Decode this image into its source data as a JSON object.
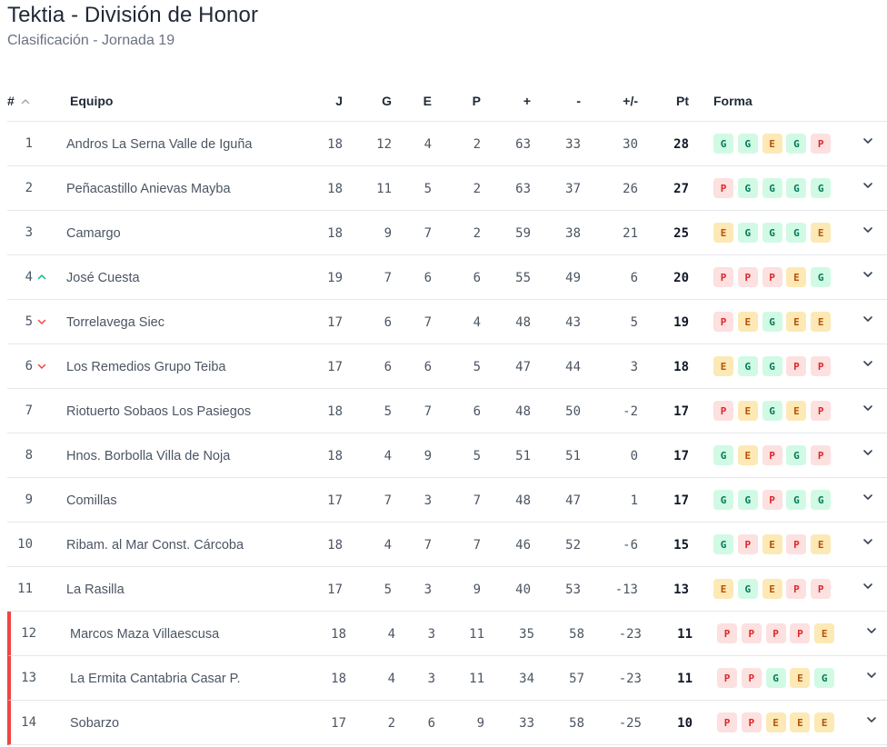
{
  "title": "Tektia - División de Honor",
  "subtitle": "Clasificación - Jornada 19",
  "headers": {
    "pos": "#",
    "team": "Equipo",
    "j": "J",
    "g": "G",
    "e": "E",
    "p": "P",
    "gf": "+",
    "ga": "-",
    "gd": "+/-",
    "pt": "Pt",
    "form": "Forma"
  },
  "colors": {
    "win_bg": "#d1fae5",
    "draw_bg": "#fde9b5",
    "loss_bg": "#fde0e0",
    "relegation": "#ef4444",
    "trend_up": "#10b981",
    "trend_down": "#ef4444"
  },
  "rows": [
    {
      "pos": "1",
      "trend": "",
      "team": "Andros La Serna Valle de Iguña",
      "j": "18",
      "g": "12",
      "e": "4",
      "p": "2",
      "gf": "63",
      "ga": "33",
      "gd": "30",
      "pt": "28",
      "form": [
        "G",
        "G",
        "E",
        "G",
        "P"
      ],
      "zone": ""
    },
    {
      "pos": "2",
      "trend": "",
      "team": "Peñacastillo Anievas Mayba",
      "j": "18",
      "g": "11",
      "e": "5",
      "p": "2",
      "gf": "63",
      "ga": "37",
      "gd": "26",
      "pt": "27",
      "form": [
        "P",
        "G",
        "G",
        "G",
        "G"
      ],
      "zone": ""
    },
    {
      "pos": "3",
      "trend": "",
      "team": "Camargo",
      "j": "18",
      "g": "9",
      "e": "7",
      "p": "2",
      "gf": "59",
      "ga": "38",
      "gd": "21",
      "pt": "25",
      "form": [
        "E",
        "G",
        "G",
        "G",
        "E"
      ],
      "zone": ""
    },
    {
      "pos": "4",
      "trend": "up",
      "team": "José Cuesta",
      "j": "19",
      "g": "7",
      "e": "6",
      "p": "6",
      "gf": "55",
      "ga": "49",
      "gd": "6",
      "pt": "20",
      "form": [
        "P",
        "P",
        "P",
        "E",
        "G"
      ],
      "zone": ""
    },
    {
      "pos": "5",
      "trend": "down",
      "team": "Torrelavega Siec",
      "j": "17",
      "g": "6",
      "e": "7",
      "p": "4",
      "gf": "48",
      "ga": "43",
      "gd": "5",
      "pt": "19",
      "form": [
        "P",
        "E",
        "G",
        "E",
        "E"
      ],
      "zone": ""
    },
    {
      "pos": "6",
      "trend": "down",
      "team": "Los Remedios Grupo Teiba",
      "j": "17",
      "g": "6",
      "e": "6",
      "p": "5",
      "gf": "47",
      "ga": "44",
      "gd": "3",
      "pt": "18",
      "form": [
        "E",
        "G",
        "G",
        "P",
        "P"
      ],
      "zone": ""
    },
    {
      "pos": "7",
      "trend": "",
      "team": "Riotuerto Sobaos Los Pasiegos",
      "j": "18",
      "g": "5",
      "e": "7",
      "p": "6",
      "gf": "48",
      "ga": "50",
      "gd": "-2",
      "pt": "17",
      "form": [
        "P",
        "E",
        "G",
        "E",
        "P"
      ],
      "zone": ""
    },
    {
      "pos": "8",
      "trend": "",
      "team": "Hnos. Borbolla Villa de Noja",
      "j": "18",
      "g": "4",
      "e": "9",
      "p": "5",
      "gf": "51",
      "ga": "51",
      "gd": "0",
      "pt": "17",
      "form": [
        "G",
        "E",
        "P",
        "G",
        "P"
      ],
      "zone": ""
    },
    {
      "pos": "9",
      "trend": "",
      "team": "Comillas",
      "j": "17",
      "g": "7",
      "e": "3",
      "p": "7",
      "gf": "48",
      "ga": "47",
      "gd": "1",
      "pt": "17",
      "form": [
        "G",
        "G",
        "P",
        "G",
        "G"
      ],
      "zone": ""
    },
    {
      "pos": "10",
      "trend": "",
      "team": "Ribam. al Mar Const. Cárcoba",
      "j": "18",
      "g": "4",
      "e": "7",
      "p": "7",
      "gf": "46",
      "ga": "52",
      "gd": "-6",
      "pt": "15",
      "form": [
        "G",
        "P",
        "E",
        "P",
        "E"
      ],
      "zone": ""
    },
    {
      "pos": "11",
      "trend": "",
      "team": "La Rasilla",
      "j": "17",
      "g": "5",
      "e": "3",
      "p": "9",
      "gf": "40",
      "ga": "53",
      "gd": "-13",
      "pt": "13",
      "form": [
        "E",
        "G",
        "E",
        "P",
        "P"
      ],
      "zone": ""
    },
    {
      "pos": "12",
      "trend": "",
      "team": "Marcos Maza Villaescusa",
      "j": "18",
      "g": "4",
      "e": "3",
      "p": "11",
      "gf": "35",
      "ga": "58",
      "gd": "-23",
      "pt": "11",
      "form": [
        "P",
        "P",
        "P",
        "P",
        "E"
      ],
      "zone": "relegation"
    },
    {
      "pos": "13",
      "trend": "",
      "team": "La Ermita Cantabria Casar P.",
      "j": "18",
      "g": "4",
      "e": "3",
      "p": "11",
      "gf": "34",
      "ga": "57",
      "gd": "-23",
      "pt": "11",
      "form": [
        "P",
        "P",
        "G",
        "E",
        "G"
      ],
      "zone": "relegation"
    },
    {
      "pos": "14",
      "trend": "",
      "team": "Sobarzo",
      "j": "17",
      "g": "2",
      "e": "6",
      "p": "9",
      "gf": "33",
      "ga": "58",
      "gd": "-25",
      "pt": "10",
      "form": [
        "P",
        "P",
        "E",
        "E",
        "E"
      ],
      "zone": "relegation"
    }
  ]
}
